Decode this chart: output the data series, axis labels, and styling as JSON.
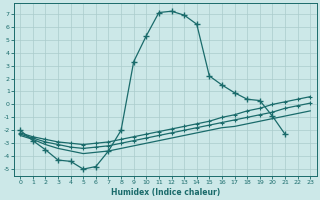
{
  "xlabel": "Humidex (Indice chaleur)",
  "bg_color": "#cce8e8",
  "grid_color": "#aacccc",
  "line_color": "#1a6b6b",
  "xlim": [
    -0.5,
    23.5
  ],
  "ylim": [
    -5.5,
    7.8
  ],
  "xticks": [
    0,
    1,
    2,
    3,
    4,
    5,
    6,
    7,
    8,
    9,
    10,
    11,
    12,
    13,
    14,
    15,
    16,
    17,
    18,
    19,
    20,
    21,
    22,
    23
  ],
  "yticks": [
    -5,
    -4,
    -3,
    -2,
    -1,
    0,
    1,
    2,
    3,
    4,
    5,
    6,
    7
  ],
  "s1_x": [
    0,
    1,
    2,
    3,
    4,
    5,
    6,
    7,
    8,
    9,
    10,
    11,
    12,
    13,
    14,
    15,
    16,
    17,
    18,
    19,
    20,
    21
  ],
  "s1_y": [
    -2.0,
    -2.8,
    -3.5,
    -4.3,
    -4.4,
    -5.0,
    -4.8,
    -3.6,
    -2.0,
    3.3,
    5.3,
    7.1,
    7.2,
    6.9,
    6.2,
    2.2,
    1.5,
    0.9,
    0.4,
    0.3,
    -0.9,
    -2.3
  ],
  "s2_x": [
    0,
    1,
    2,
    3,
    4,
    5,
    6,
    7,
    8,
    9,
    10,
    11,
    12,
    13,
    14,
    15,
    16,
    17,
    18,
    19,
    20,
    21,
    22,
    23
  ],
  "s2_y": [
    -2.2,
    -2.5,
    -2.7,
    -2.9,
    -3.0,
    -3.1,
    -3.0,
    -2.9,
    -2.7,
    -2.5,
    -2.3,
    -2.1,
    -1.9,
    -1.7,
    -1.5,
    -1.3,
    -1.0,
    -0.8,
    -0.5,
    -0.3,
    0.0,
    0.2,
    0.4,
    0.6
  ],
  "s3_x": [
    0,
    1,
    2,
    3,
    4,
    5,
    6,
    7,
    8,
    9,
    10,
    11,
    12,
    13,
    14,
    15,
    16,
    17,
    18,
    19,
    20,
    21,
    22,
    23
  ],
  "s3_y": [
    -2.3,
    -2.6,
    -2.9,
    -3.1,
    -3.3,
    -3.4,
    -3.3,
    -3.2,
    -3.0,
    -2.8,
    -2.6,
    -2.4,
    -2.2,
    -2.0,
    -1.8,
    -1.6,
    -1.4,
    -1.2,
    -1.0,
    -0.8,
    -0.6,
    -0.3,
    -0.1,
    0.1
  ],
  "s4_x": [
    0,
    1,
    2,
    3,
    4,
    5,
    6,
    7,
    8,
    9,
    10,
    11,
    12,
    13,
    14,
    15,
    16,
    17,
    18,
    19,
    20,
    21,
    22,
    23
  ],
  "s4_y": [
    -2.4,
    -2.7,
    -3.1,
    -3.4,
    -3.6,
    -3.8,
    -3.7,
    -3.6,
    -3.4,
    -3.2,
    -3.0,
    -2.8,
    -2.6,
    -2.4,
    -2.2,
    -2.0,
    -1.8,
    -1.7,
    -1.5,
    -1.3,
    -1.1,
    -0.9,
    -0.7,
    -0.5
  ]
}
